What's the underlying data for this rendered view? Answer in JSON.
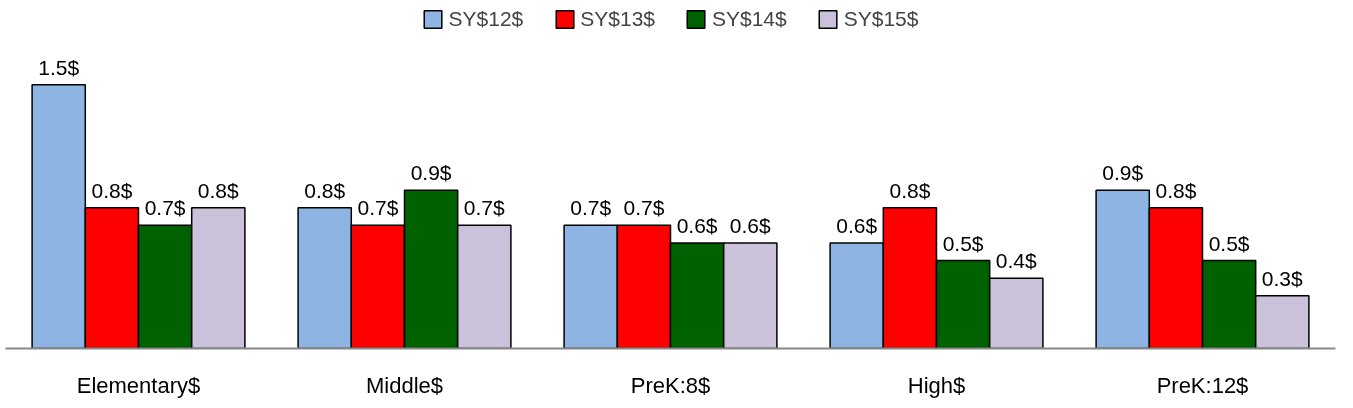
{
  "chart_data": {
    "type": "bar",
    "categories": [
      "Elementary$",
      "Middle$",
      "PreK:8$",
      "High$",
      "PreK:12$"
    ],
    "series": [
      {
        "name": "SY$12$",
        "color": "#8eb4e3",
        "values": [
          1.5,
          0.8,
          0.7,
          0.6,
          0.9
        ],
        "value_labels": [
          "1.5$",
          "0.8$",
          "0.7$",
          "0.6$",
          "0.9$"
        ]
      },
      {
        "name": "SY$13$",
        "color": "#ff0000",
        "values": [
          0.8,
          0.7,
          0.7,
          0.8,
          0.8
        ],
        "value_labels": [
          "0.8$",
          "0.7$",
          "0.7$",
          "0.8$",
          "0.8$"
        ]
      },
      {
        "name": "SY$14$",
        "color": "#006100",
        "values": [
          0.7,
          0.9,
          0.6,
          0.5,
          0.5
        ],
        "value_labels": [
          "0.7$",
          "0.9$",
          "0.6$",
          "0.5$",
          "0.5$"
        ]
      },
      {
        "name": "SY$15$",
        "color": "#ccc1da",
        "values": [
          0.8,
          0.7,
          0.6,
          0.4,
          0.3
        ],
        "value_labels": [
          "0.8$",
          "0.7$",
          "0.6$",
          "0.4$",
          "0.3$"
        ]
      }
    ],
    "legend": "top",
    "grid": false
  }
}
